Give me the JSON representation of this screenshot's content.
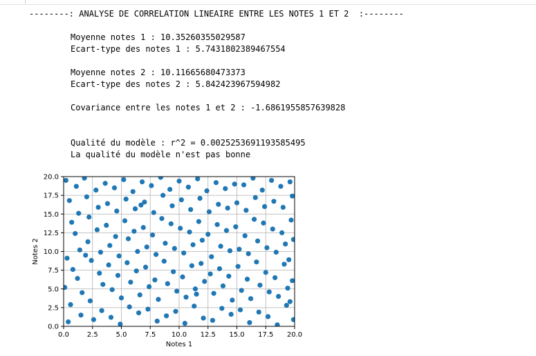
{
  "output": {
    "header": "--------: ANALYSE DE CORRELATION LINEAIRE ENTRE LES NOTES 1 ET 2  :--------",
    "mean1": "Moyenne notes 1 : 10.35260355029587",
    "std1": "Ecart-type des notes 1 : 5.7431802389467554",
    "mean2": "Moyenne notes 2 : 10.11665680473373",
    "std2": "Ecart-type des notes 2 : 5.842423967594982",
    "covariance": "Covariance entre les notes 1 et 2 : -1.6861955857639828",
    "r2": "Qualité du modèle : r^2 = 0.002525369119358549​5",
    "verdict": "La qualité du modèle n'est pas bonne"
  },
  "chart_data": {
    "type": "scatter",
    "xlabel": "Notes 1",
    "ylabel": "Notes 2",
    "xlim": [
      0,
      20
    ],
    "ylim": [
      0,
      20
    ],
    "grid": true,
    "xticks": [
      "0.0",
      "2.5",
      "5.0",
      "7.5",
      "10.0",
      "12.5",
      "15.0",
      "17.5",
      "20.0"
    ],
    "yticks": [
      "0.0",
      "2.5",
      "5.0",
      "7.5",
      "10.0",
      "12.5",
      "15.0",
      "17.5",
      "20.0"
    ],
    "point_color": "#1f77b4",
    "points": [
      [
        0.2,
        19.5
      ],
      [
        0.5,
        16.8
      ],
      [
        0.7,
        13.9
      ],
      [
        0.3,
        9.1
      ],
      [
        0.8,
        7.6
      ],
      [
        0.1,
        5.2
      ],
      [
        0.6,
        2.9
      ],
      [
        0.4,
        0.6
      ],
      [
        1.1,
        18.7
      ],
      [
        1.3,
        15.1
      ],
      [
        1.0,
        12.4
      ],
      [
        1.4,
        10.2
      ],
      [
        1.2,
        6.4
      ],
      [
        1.6,
        4.5
      ],
      [
        1.5,
        1.5
      ],
      [
        1.8,
        19.8
      ],
      [
        2.0,
        17.3
      ],
      [
        2.2,
        14.6
      ],
      [
        2.1,
        11.3
      ],
      [
        2.4,
        8.8
      ],
      [
        2.3,
        3.4
      ],
      [
        2.6,
        0.9
      ],
      [
        2.8,
        18.2
      ],
      [
        3.0,
        15.9
      ],
      [
        2.9,
        12.9
      ],
      [
        3.2,
        9.9
      ],
      [
        3.1,
        7.1
      ],
      [
        3.4,
        5.6
      ],
      [
        3.3,
        2.1
      ],
      [
        3.6,
        19.1
      ],
      [
        3.8,
        16.4
      ],
      [
        3.7,
        13.5
      ],
      [
        4.0,
        10.8
      ],
      [
        3.9,
        8.2
      ],
      [
        4.2,
        4.9
      ],
      [
        4.1,
        1.2
      ],
      [
        4.4,
        18.5
      ],
      [
        4.6,
        15.4
      ],
      [
        4.5,
        12.0
      ],
      [
        4.8,
        9.4
      ],
      [
        4.7,
        6.8
      ],
      [
        5.0,
        3.8
      ],
      [
        4.9,
        0.3
      ],
      [
        5.2,
        19.6
      ],
      [
        5.4,
        17.0
      ],
      [
        5.3,
        14.1
      ],
      [
        5.6,
        11.7
      ],
      [
        5.5,
        8.5
      ],
      [
        5.8,
        5.9
      ],
      [
        5.7,
        2.6
      ],
      [
        6.0,
        18.0
      ],
      [
        6.2,
        15.7
      ],
      [
        6.1,
        12.7
      ],
      [
        6.4,
        10.0
      ],
      [
        6.3,
        7.4
      ],
      [
        6.6,
        4.2
      ],
      [
        6.5,
        1.8
      ],
      [
        6.8,
        19.3
      ],
      [
        7.0,
        16.6
      ],
      [
        6.9,
        13.2
      ],
      [
        7.2,
        10.6
      ],
      [
        7.1,
        7.9
      ],
      [
        7.4,
        5.3
      ],
      [
        7.3,
        2.3
      ],
      [
        7.6,
        18.8
      ],
      [
        7.8,
        15.2
      ],
      [
        7.7,
        12.2
      ],
      [
        8.0,
        9.6
      ],
      [
        7.9,
        6.2
      ],
      [
        8.2,
        3.6
      ],
      [
        8.1,
        0.7
      ],
      [
        8.4,
        19.9
      ],
      [
        8.6,
        17.5
      ],
      [
        8.5,
        14.4
      ],
      [
        8.8,
        11.1
      ],
      [
        8.7,
        8.7
      ],
      [
        9.0,
        5.7
      ],
      [
        8.9,
        1.4
      ],
      [
        9.2,
        18.3
      ],
      [
        9.4,
        16.1
      ],
      [
        9.3,
        13.7
      ],
      [
        9.6,
        10.4
      ],
      [
        9.5,
        7.3
      ],
      [
        9.8,
        4.7
      ],
      [
        9.7,
        2.0
      ],
      [
        10.0,
        19.4
      ],
      [
        10.2,
        16.9
      ],
      [
        10.1,
        13.1
      ],
      [
        10.4,
        9.8
      ],
      [
        10.3,
        6.6
      ],
      [
        10.6,
        3.9
      ],
      [
        10.5,
        0.4
      ],
      [
        10.8,
        18.6
      ],
      [
        11.0,
        15.6
      ],
      [
        10.9,
        12.6
      ],
      [
        11.2,
        10.9
      ],
      [
        11.1,
        8.1
      ],
      [
        11.4,
        5.0
      ],
      [
        11.3,
        2.7
      ],
      [
        11.6,
        19.7
      ],
      [
        11.8,
        17.1
      ],
      [
        11.7,
        14.0
      ],
      [
        12.0,
        11.5
      ],
      [
        11.9,
        8.4
      ],
      [
        12.2,
        6.0
      ],
      [
        12.1,
        1.1
      ],
      [
        12.4,
        18.1
      ],
      [
        12.6,
        15.3
      ],
      [
        12.5,
        12.3
      ],
      [
        12.8,
        9.3
      ],
      [
        12.7,
        7.0
      ],
      [
        13.0,
        4.4
      ],
      [
        12.9,
        0.8
      ],
      [
        13.2,
        19.2
      ],
      [
        13.4,
        16.3
      ],
      [
        13.3,
        13.6
      ],
      [
        13.6,
        10.7
      ],
      [
        13.5,
        7.7
      ],
      [
        13.8,
        5.4
      ],
      [
        13.7,
        2.4
      ],
      [
        14.0,
        18.4
      ],
      [
        14.2,
        15.8
      ],
      [
        14.1,
        12.8
      ],
      [
        14.4,
        10.1
      ],
      [
        14.3,
        6.7
      ],
      [
        14.6,
        3.5
      ],
      [
        14.5,
        1.6
      ],
      [
        14.8,
        19.0
      ],
      [
        15.0,
        16.5
      ],
      [
        14.9,
        13.3
      ],
      [
        15.2,
        10.3
      ],
      [
        15.1,
        8.0
      ],
      [
        15.4,
        4.8
      ],
      [
        15.3,
        2.2
      ],
      [
        15.6,
        18.9
      ],
      [
        15.8,
        15.5
      ],
      [
        15.7,
        12.1
      ],
      [
        16.0,
        9.7
      ],
      [
        15.9,
        6.3
      ],
      [
        16.2,
        3.7
      ],
      [
        16.1,
        0.5
      ],
      [
        16.4,
        19.8
      ],
      [
        16.6,
        17.2
      ],
      [
        16.5,
        14.3
      ],
      [
        16.8,
        11.4
      ],
      [
        16.7,
        8.6
      ],
      [
        17.0,
        5.5
      ],
      [
        16.9,
        1.9
      ],
      [
        17.2,
        18.2
      ],
      [
        17.4,
        16.0
      ],
      [
        17.3,
        13.8
      ],
      [
        17.6,
        10.5
      ],
      [
        17.5,
        7.2
      ],
      [
        17.8,
        4.6
      ],
      [
        17.7,
        1.3
      ],
      [
        18.0,
        19.5
      ],
      [
        18.2,
        16.7
      ],
      [
        18.1,
        13.0
      ],
      [
        18.4,
        9.9
      ],
      [
        18.3,
        6.5
      ],
      [
        18.6,
        4.0
      ],
      [
        18.5,
        0.2
      ],
      [
        18.8,
        18.7
      ],
      [
        19.0,
        15.9
      ],
      [
        18.9,
        12.5
      ],
      [
        19.2,
        11.0
      ],
      [
        19.1,
        8.3
      ],
      [
        19.4,
        5.1
      ],
      [
        19.3,
        2.8
      ],
      [
        19.6,
        19.3
      ],
      [
        19.8,
        17.4
      ],
      [
        19.7,
        14.2
      ],
      [
        19.9,
        11.6
      ],
      [
        19.5,
        8.9
      ],
      [
        19.8,
        6.1
      ],
      [
        19.6,
        3.3
      ],
      [
        19.9,
        0.9
      ],
      [
        1.9,
        9.5
      ],
      [
        6.7,
        16.2
      ],
      [
        11.5,
        4.3
      ]
    ]
  }
}
